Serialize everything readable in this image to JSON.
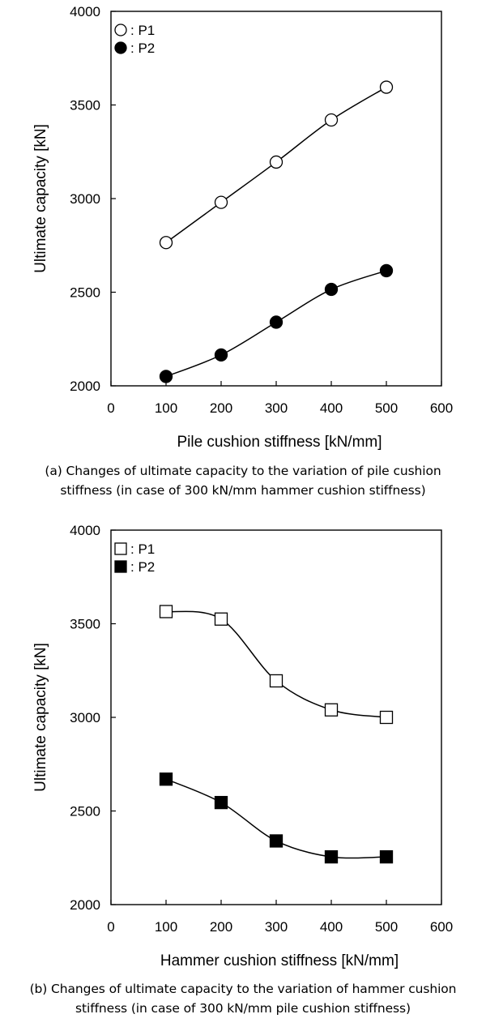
{
  "chart_data": [
    {
      "type": "line",
      "panel": "(a)",
      "xlabel": "Pile cushion stiffness [kN/mm]",
      "ylabel": "Ultimate capacity [kN]",
      "xlim": [
        0,
        600
      ],
      "ylim": [
        2000,
        4000
      ],
      "xticks": [
        "0",
        "100",
        "200",
        "300",
        "400",
        "500",
        "600"
      ],
      "yticks": [
        "2000",
        "2500",
        "3000",
        "3500",
        "4000"
      ],
      "x": [
        100,
        200,
        300,
        400,
        500
      ],
      "marker": "circle",
      "legend_position": "top-left",
      "grid": false,
      "series": [
        {
          "name": "P1",
          "legend_label": ": P1",
          "filled": false,
          "values": [
            2765,
            2980,
            3195,
            3420,
            3595
          ]
        },
        {
          "name": "P2",
          "legend_label": ": P2",
          "filled": true,
          "values": [
            2050,
            2165,
            2340,
            2515,
            2615
          ]
        }
      ],
      "caption_line1": "(a) Changes of ultimate capacity to the variation of pile cushion",
      "caption_line2": "stiffness (in case of 300 kN/mm hammer cushion stiffness)"
    },
    {
      "type": "line",
      "panel": "(b)",
      "xlabel": "Hammer cushion stiffness [kN/mm]",
      "ylabel": "Ultimate capacity [kN]",
      "xlim": [
        0,
        600
      ],
      "ylim": [
        2000,
        4000
      ],
      "xticks": [
        "0",
        "100",
        "200",
        "300",
        "400",
        "500",
        "600"
      ],
      "yticks": [
        "2000",
        "2500",
        "3000",
        "3500",
        "4000"
      ],
      "x": [
        100,
        200,
        300,
        400,
        500
      ],
      "marker": "square",
      "legend_position": "top-left",
      "grid": false,
      "series": [
        {
          "name": "P1",
          "legend_label": ": P1",
          "filled": false,
          "values": [
            3565,
            3525,
            3195,
            3040,
            3000
          ]
        },
        {
          "name": "P2",
          "legend_label": ": P2",
          "filled": true,
          "values": [
            2670,
            2545,
            2340,
            2255,
            2255
          ]
        }
      ],
      "caption_line1": "(b) Changes of ultimate capacity to the variation of hammer cushion",
      "caption_line2": "stiffness (in case of 300 kN/mm pile cushion stiffness)"
    }
  ]
}
